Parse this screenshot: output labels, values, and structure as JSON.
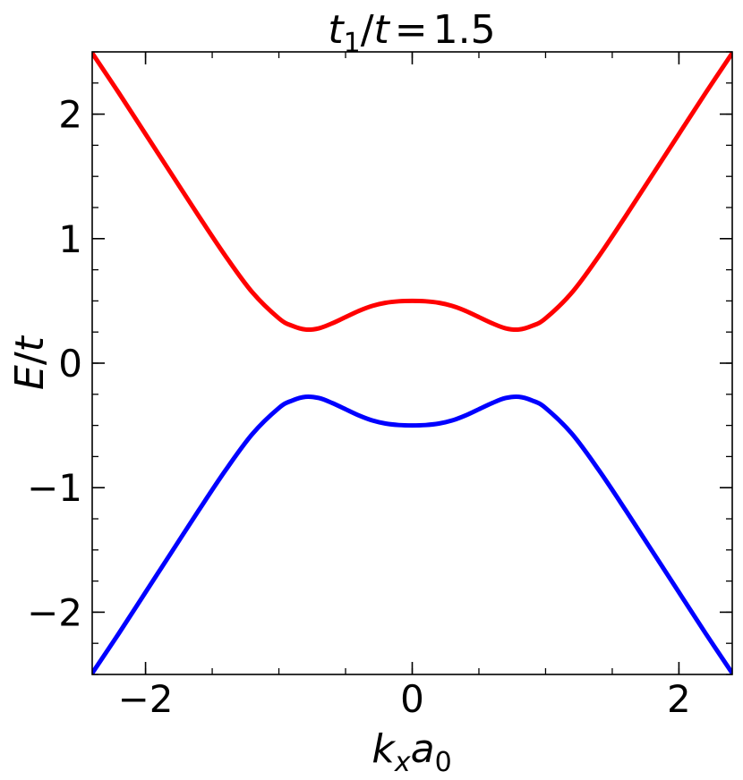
{
  "chart_data": {
    "type": "line",
    "title": {
      "var": "t",
      "sub": "1",
      "sep": "/",
      "den": "t",
      "eq": "=",
      "value": "1.5"
    },
    "xlabel": {
      "k": "k",
      "ksub": "x",
      "a": "a",
      "asub": "0"
    },
    "ylabel": {
      "E": "E",
      "sep": "/",
      "t": "t"
    },
    "xlim": [
      -2.4,
      2.4
    ],
    "ylim": [
      -2.5,
      2.5
    ],
    "xticks": [
      -2,
      0,
      2
    ],
    "xtick_labels": [
      "−2",
      "0",
      "2"
    ],
    "yticks": [
      -2,
      -1,
      0,
      1,
      2
    ],
    "ytick_labels": [
      "−2",
      "−1",
      "0",
      "1",
      "2"
    ],
    "x_minor_step": 0.5,
    "y_minor_step": 0.25,
    "grid": false,
    "series": [
      {
        "color": "#ff0000",
        "x": [
          -2.4,
          -2.2,
          -2.0,
          -1.8,
          -1.6,
          -1.4,
          -1.2,
          -1.0,
          -0.9,
          -0.8,
          -0.7,
          -0.6,
          -0.5,
          -0.4,
          -0.3,
          -0.2,
          -0.1,
          0.0,
          0.1,
          0.2,
          0.3,
          0.4,
          0.5,
          0.6,
          0.7,
          0.8,
          0.9,
          1.0,
          1.2,
          1.4,
          1.6,
          1.8,
          2.0,
          2.2,
          2.4
        ],
        "y": [
          2.49,
          2.17,
          1.84,
          1.51,
          1.18,
          0.86,
          0.57,
          0.36,
          0.3,
          0.27,
          0.28,
          0.32,
          0.37,
          0.42,
          0.46,
          0.485,
          0.497,
          0.5,
          0.497,
          0.485,
          0.46,
          0.42,
          0.37,
          0.32,
          0.28,
          0.27,
          0.3,
          0.36,
          0.57,
          0.86,
          1.18,
          1.51,
          1.84,
          2.17,
          2.49
        ]
      },
      {
        "color": "#0000ff",
        "x": [
          -2.4,
          -2.2,
          -2.0,
          -1.8,
          -1.6,
          -1.4,
          -1.2,
          -1.0,
          -0.9,
          -0.8,
          -0.7,
          -0.6,
          -0.5,
          -0.4,
          -0.3,
          -0.2,
          -0.1,
          0.0,
          0.1,
          0.2,
          0.3,
          0.4,
          0.5,
          0.6,
          0.7,
          0.8,
          0.9,
          1.0,
          1.2,
          1.4,
          1.6,
          1.8,
          2.0,
          2.2,
          2.4
        ],
        "y": [
          -2.49,
          -2.17,
          -1.84,
          -1.51,
          -1.18,
          -0.86,
          -0.57,
          -0.36,
          -0.3,
          -0.27,
          -0.28,
          -0.32,
          -0.37,
          -0.42,
          -0.46,
          -0.485,
          -0.497,
          -0.5,
          -0.497,
          -0.485,
          -0.46,
          -0.42,
          -0.37,
          -0.32,
          -0.28,
          -0.27,
          -0.3,
          -0.36,
          -0.57,
          -0.86,
          -1.18,
          -1.51,
          -1.84,
          -2.17,
          -2.49
        ]
      }
    ]
  }
}
